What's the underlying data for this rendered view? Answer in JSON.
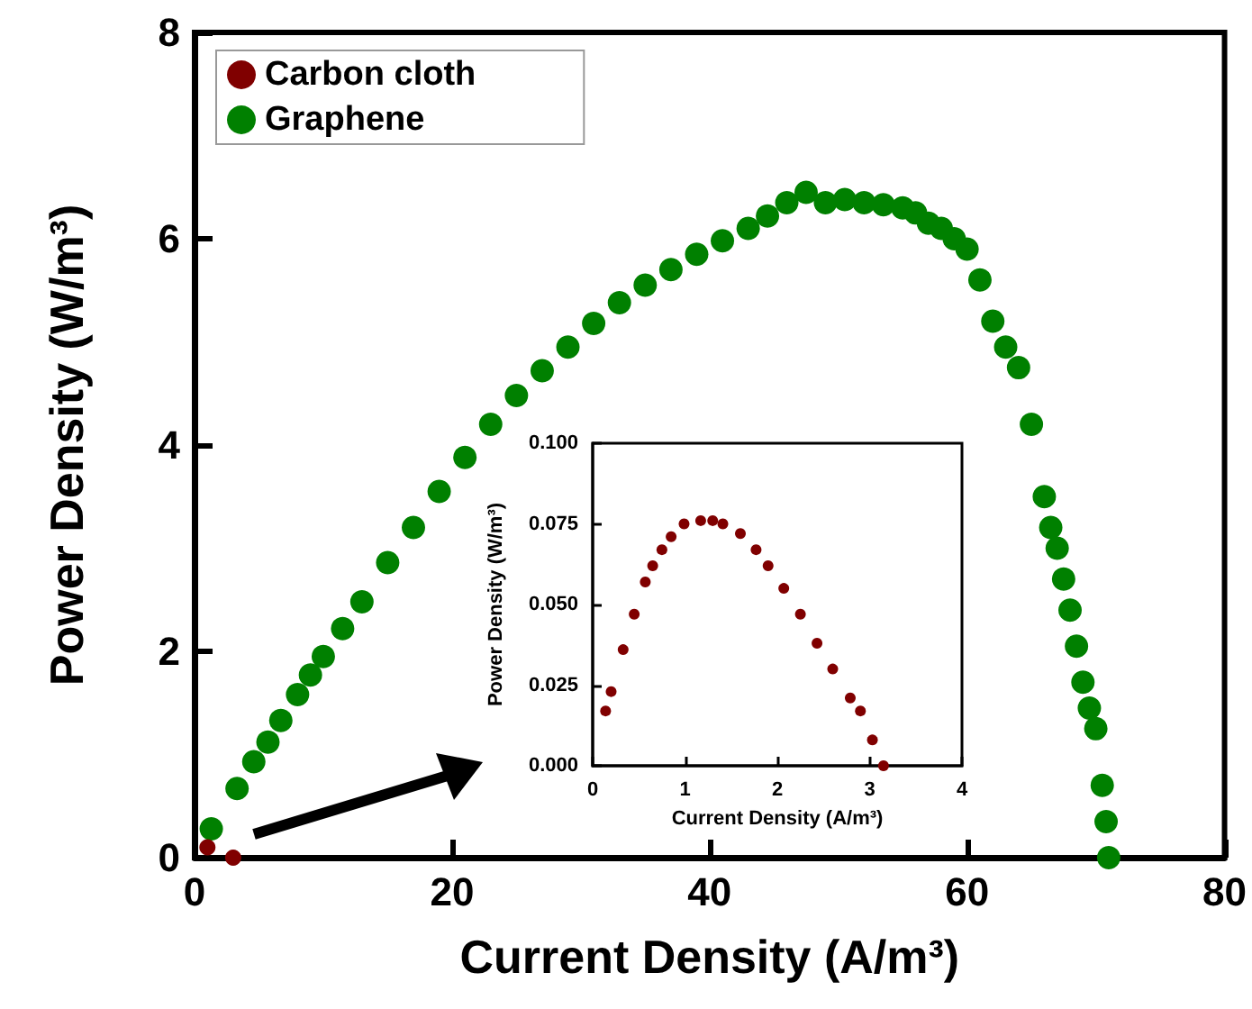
{
  "chart_data": [
    {
      "type": "scatter",
      "xlabel": "Current Density (A/m³)",
      "ylabel": "Power Density (W/m³)",
      "xlim": [
        0,
        80
      ],
      "ylim": [
        0,
        8
      ],
      "xticks": [
        0,
        20,
        40,
        60,
        80
      ],
      "yticks": [
        0,
        2,
        4,
        6,
        8
      ],
      "legend": "top left",
      "marker": "circle",
      "series": [
        {
          "name": "Carbon cloth",
          "color": "#800000",
          "x": [
            1,
            3
          ],
          "values": [
            0.1,
            0
          ]
        },
        {
          "name": "Graphene",
          "color": "#008000",
          "x": [
            1.3,
            3.3,
            4.6,
            5.7,
            6.7,
            8,
            9,
            10,
            11.5,
            13,
            15,
            17,
            19,
            21,
            23,
            25,
            27,
            29,
            31,
            33,
            35,
            37,
            39,
            41,
            43,
            44.5,
            46,
            47.5,
            49,
            50.5,
            52,
            53.5,
            55,
            56,
            57,
            58,
            59,
            60,
            61,
            62,
            63,
            64,
            65,
            66,
            66.5,
            67,
            67.5,
            68,
            68.5,
            69,
            69.5,
            70,
            70.5,
            70.8,
            71
          ],
          "values": [
            0.28,
            0.67,
            0.93,
            1.12,
            1.33,
            1.58,
            1.77,
            1.95,
            2.22,
            2.48,
            2.86,
            3.2,
            3.55,
            3.88,
            4.2,
            4.48,
            4.72,
            4.95,
            5.18,
            5.38,
            5.55,
            5.7,
            5.85,
            5.98,
            6.1,
            6.22,
            6.35,
            6.45,
            6.35,
            6.38,
            6.35,
            6.33,
            6.3,
            6.25,
            6.15,
            6.1,
            6.0,
            5.9,
            5.6,
            5.2,
            4.95,
            4.75,
            4.2,
            3.5,
            3.2,
            3.0,
            2.7,
            2.4,
            2.05,
            1.7,
            1.45,
            1.25,
            0.7,
            0.35,
            0
          ]
        }
      ]
    },
    {
      "type": "scatter",
      "xlabel": "Current Density (A/m³)",
      "ylabel": "Power Density (W/m³)",
      "xlim": [
        0,
        4
      ],
      "ylim": [
        0,
        0.1
      ],
      "xticks": [
        0,
        1,
        2,
        3,
        4
      ],
      "yticks": [
        {
          "value": 0,
          "label": "0.000"
        },
        {
          "value": 0.025,
          "label": "0.025"
        },
        {
          "value": 0.05,
          "label": "0.050"
        },
        {
          "value": 0.075,
          "label": "0.075"
        },
        {
          "value": 0.1,
          "label": "0.100"
        }
      ],
      "marker": "circle",
      "series": [
        {
          "color": "#800000",
          "x": [
            0.14,
            0.2,
            0.33,
            0.45,
            0.57,
            0.65,
            0.75,
            0.85,
            0.99,
            1.17,
            1.3,
            1.41,
            1.6,
            1.77,
            1.9,
            2.07,
            2.25,
            2.43,
            2.6,
            2.79,
            2.9,
            3.03,
            3.15
          ],
          "values": [
            0.017,
            0.023,
            0.036,
            0.047,
            0.057,
            0.062,
            0.067,
            0.071,
            0.075,
            0.076,
            0.076,
            0.075,
            0.072,
            0.067,
            0.062,
            0.055,
            0.047,
            0.038,
            0.03,
            0.021,
            0.017,
            0.008,
            0
          ]
        }
      ]
    }
  ]
}
